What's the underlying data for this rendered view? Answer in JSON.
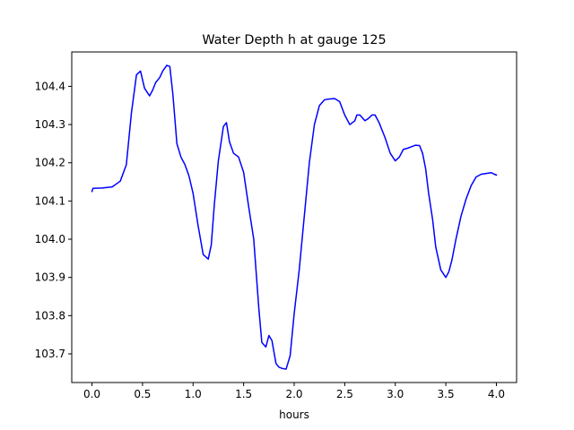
{
  "chart_data": {
    "type": "line",
    "title": "Water Depth h at gauge 125",
    "xlabel": "hours",
    "ylabel": "",
    "xlim": [
      -0.2,
      4.2
    ],
    "ylim": [
      103.625,
      104.49
    ],
    "xticks": [
      0.0,
      0.5,
      1.0,
      1.5,
      2.0,
      2.5,
      3.0,
      3.5,
      4.0
    ],
    "xtick_labels": [
      "0.0",
      "0.5",
      "1.0",
      "1.5",
      "2.0",
      "2.5",
      "3.0",
      "3.5",
      "4.0"
    ],
    "yticks": [
      103.7,
      103.8,
      103.9,
      104.0,
      104.1,
      104.2,
      104.3,
      104.4
    ],
    "ytick_labels": [
      "103.7",
      "103.8",
      "103.9",
      "104.0",
      "104.1",
      "104.2",
      "104.3",
      "104.4"
    ],
    "grid": false,
    "series": [
      {
        "name": "",
        "color": "#0000ff",
        "x": [
          0.0,
          0.01,
          0.1,
          0.2,
          0.28,
          0.34,
          0.39,
          0.44,
          0.48,
          0.52,
          0.57,
          0.6,
          0.63,
          0.67,
          0.7,
          0.74,
          0.77,
          0.8,
          0.84,
          0.88,
          0.92,
          0.96,
          1.0,
          1.05,
          1.1,
          1.15,
          1.18,
          1.21,
          1.25,
          1.3,
          1.33,
          1.36,
          1.4,
          1.45,
          1.5,
          1.55,
          1.6,
          1.65,
          1.68,
          1.72,
          1.75,
          1.78,
          1.8,
          1.82,
          1.85,
          1.88,
          1.92,
          1.96,
          2.0,
          2.05,
          2.1,
          2.15,
          2.2,
          2.25,
          2.3,
          2.35,
          2.4,
          2.45,
          2.5,
          2.55,
          2.6,
          2.62,
          2.65,
          2.7,
          2.73,
          2.77,
          2.8,
          2.84,
          2.9,
          2.95,
          3.0,
          3.04,
          3.08,
          3.12,
          3.16,
          3.2,
          3.24,
          3.27,
          3.3,
          3.33,
          3.37,
          3.4,
          3.45,
          3.5,
          3.53,
          3.56,
          3.6,
          3.65,
          3.7,
          3.75,
          3.8,
          3.85,
          3.9,
          3.95,
          3.98,
          4.0
        ],
        "values": [
          104.125,
          104.133,
          104.134,
          104.137,
          104.152,
          104.195,
          104.33,
          104.43,
          104.44,
          104.395,
          104.375,
          104.39,
          104.41,
          104.423,
          104.44,
          104.455,
          104.452,
          104.38,
          104.25,
          104.215,
          104.195,
          104.165,
          104.12,
          104.035,
          103.96,
          103.948,
          103.985,
          104.09,
          104.205,
          104.295,
          104.305,
          104.255,
          104.225,
          104.215,
          104.175,
          104.085,
          104.0,
          103.82,
          103.73,
          103.718,
          103.748,
          103.735,
          103.705,
          103.675,
          103.665,
          103.662,
          103.66,
          103.695,
          103.805,
          103.92,
          104.06,
          104.2,
          104.3,
          104.35,
          104.365,
          104.367,
          104.368,
          104.36,
          104.325,
          104.3,
          104.31,
          104.325,
          104.325,
          104.31,
          104.315,
          104.325,
          104.325,
          104.305,
          104.265,
          104.225,
          104.205,
          104.215,
          104.235,
          104.238,
          104.242,
          104.246,
          104.245,
          104.225,
          104.185,
          104.12,
          104.05,
          103.98,
          103.92,
          103.9,
          103.915,
          103.945,
          104.0,
          104.06,
          104.105,
          104.14,
          104.163,
          104.17,
          104.172,
          104.174,
          104.17,
          104.168
        ]
      }
    ]
  }
}
